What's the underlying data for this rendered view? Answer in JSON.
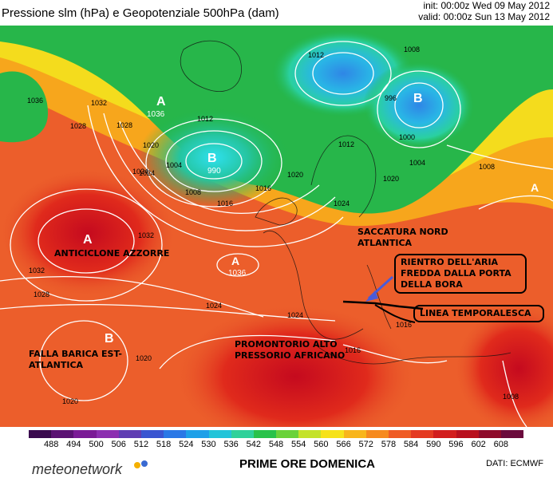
{
  "header": {
    "title": "Pressione slm (hPa) e Geopotenziale 500hPa (dam)",
    "init": "init: 00:00z Wed 09 May 2012",
    "valid": "valid: 00:00z Sun 13 May 2012"
  },
  "colors": {
    "ocean_bg": "#e85a2a",
    "low_center": "#2ecce6",
    "ridge": "#d40f1a",
    "green": "#22b54a",
    "yellow": "#f6e21a",
    "isobar": "#ffffff",
    "arrow": "#4a5bd9"
  },
  "pressure_centers": [
    {
      "letter": "A",
      "value": "1036"
    },
    {
      "letter": "B",
      "value": "990"
    },
    {
      "letter": "B",
      "value": ""
    },
    {
      "letter": "A",
      "value": "1036"
    },
    {
      "letter": "A",
      "value": ""
    },
    {
      "letter": "B",
      "value": ""
    },
    {
      "letter": "A",
      "value": ""
    }
  ],
  "isobar_labels": [
    "1012",
    "1008",
    "1012",
    "1004",
    "1016",
    "1020",
    "1024",
    "1028",
    "1032",
    "1036",
    "1012",
    "1008",
    "1000",
    "1004",
    "1008",
    "1016",
    "1020",
    "1024",
    "1028",
    "1032",
    "1020",
    "1024",
    "1028",
    "1032",
    "1016",
    "1016",
    "1024",
    "1020",
    "1024",
    "1020",
    "1008",
    "996"
  ],
  "annotations": {
    "anticyclone": "ANTICICLONE AZZORRE",
    "falla": "FALLA BARICA EST-\nATLANTICA",
    "promontorio": "PROMONTORIO ALTO\nPRESSORIO AFRICANO",
    "saccatura": "SACCATURA NORD\nATLANTICA",
    "rientro": "RIENTRO DELL'ARIA\nFREDDA DALLA PORTA\nDELLA BORA",
    "linea": "LINEA TEMPORALESCA"
  },
  "legend": {
    "values": [
      "488",
      "494",
      "500",
      "506",
      "512",
      "518",
      "524",
      "530",
      "536",
      "542",
      "548",
      "554",
      "560",
      "566",
      "572",
      "578",
      "584",
      "590",
      "596",
      "602",
      "608"
    ],
    "colors": [
      "#3a0a4e",
      "#5b1273",
      "#7a1b96",
      "#8c2fb0",
      "#5f3db3",
      "#3a55d1",
      "#2a78e6",
      "#1ea0e8",
      "#23c4d9",
      "#2fd19a",
      "#29c24a",
      "#6ad23a",
      "#c4e22a",
      "#f6e21a",
      "#f8b51b",
      "#f68a1e",
      "#ef5b24",
      "#e43a21",
      "#d21d1d",
      "#b80f1d",
      "#8e0a2a",
      "#6b0a3c"
    ]
  },
  "footer": {
    "brand": "meteonetwork",
    "title": "PRIME ORE DOMENICA",
    "source": "DATI:  ECMWF"
  }
}
